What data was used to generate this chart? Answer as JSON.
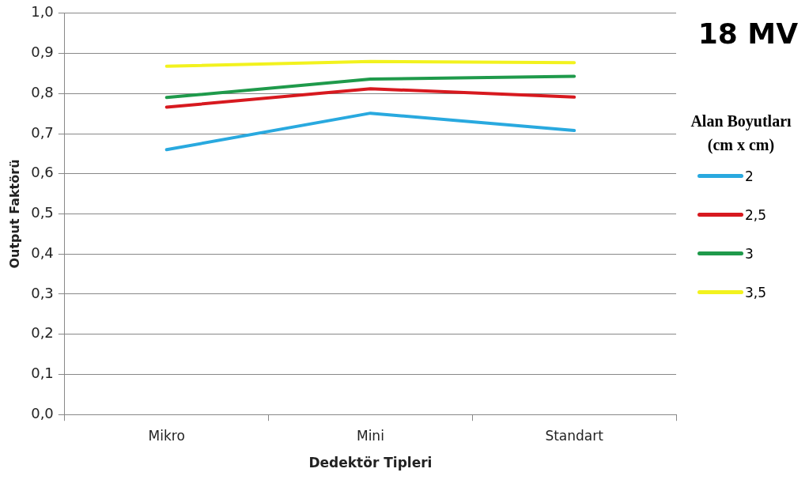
{
  "chart_data": {
    "type": "line",
    "title": "18 MV",
    "xlabel": "Dedektör Tipleri",
    "ylabel": "Output Faktörü",
    "legend_title": "Alan Boyutları (cm x cm)",
    "categories": [
      "Mikro",
      "Mini",
      "Standart"
    ],
    "series": [
      {
        "name": "2",
        "color": "#29a9df",
        "values": [
          0.66,
          0.751,
          0.708
        ]
      },
      {
        "name": "2,5",
        "color": "#d7191f",
        "values": [
          0.766,
          0.812,
          0.791
        ]
      },
      {
        "name": "3",
        "color": "#1f9a4b",
        "values": [
          0.79,
          0.836,
          0.843
        ]
      },
      {
        "name": "3,5",
        "color": "#f2f21e",
        "values": [
          0.868,
          0.88,
          0.877
        ]
      }
    ],
    "ylim": [
      0,
      1
    ],
    "yticks": [
      {
        "value": 0,
        "label": "0,0"
      },
      {
        "value": 0.1,
        "label": "0,1"
      },
      {
        "value": 0.2,
        "label": "0,2"
      },
      {
        "value": 0.3,
        "label": "0,3"
      },
      {
        "value": 0.4,
        "label": "0,4"
      },
      {
        "value": 0.5,
        "label": "0,5"
      },
      {
        "value": 0.6,
        "label": "0,6"
      },
      {
        "value": 0.7,
        "label": "0,7"
      },
      {
        "value": 0.8,
        "label": "0,8"
      },
      {
        "value": 0.9,
        "label": "0,9"
      },
      {
        "value": 1,
        "label": "1,0"
      }
    ],
    "grid": "y",
    "legend": "right",
    "marker": "none",
    "line_style": "solid"
  }
}
